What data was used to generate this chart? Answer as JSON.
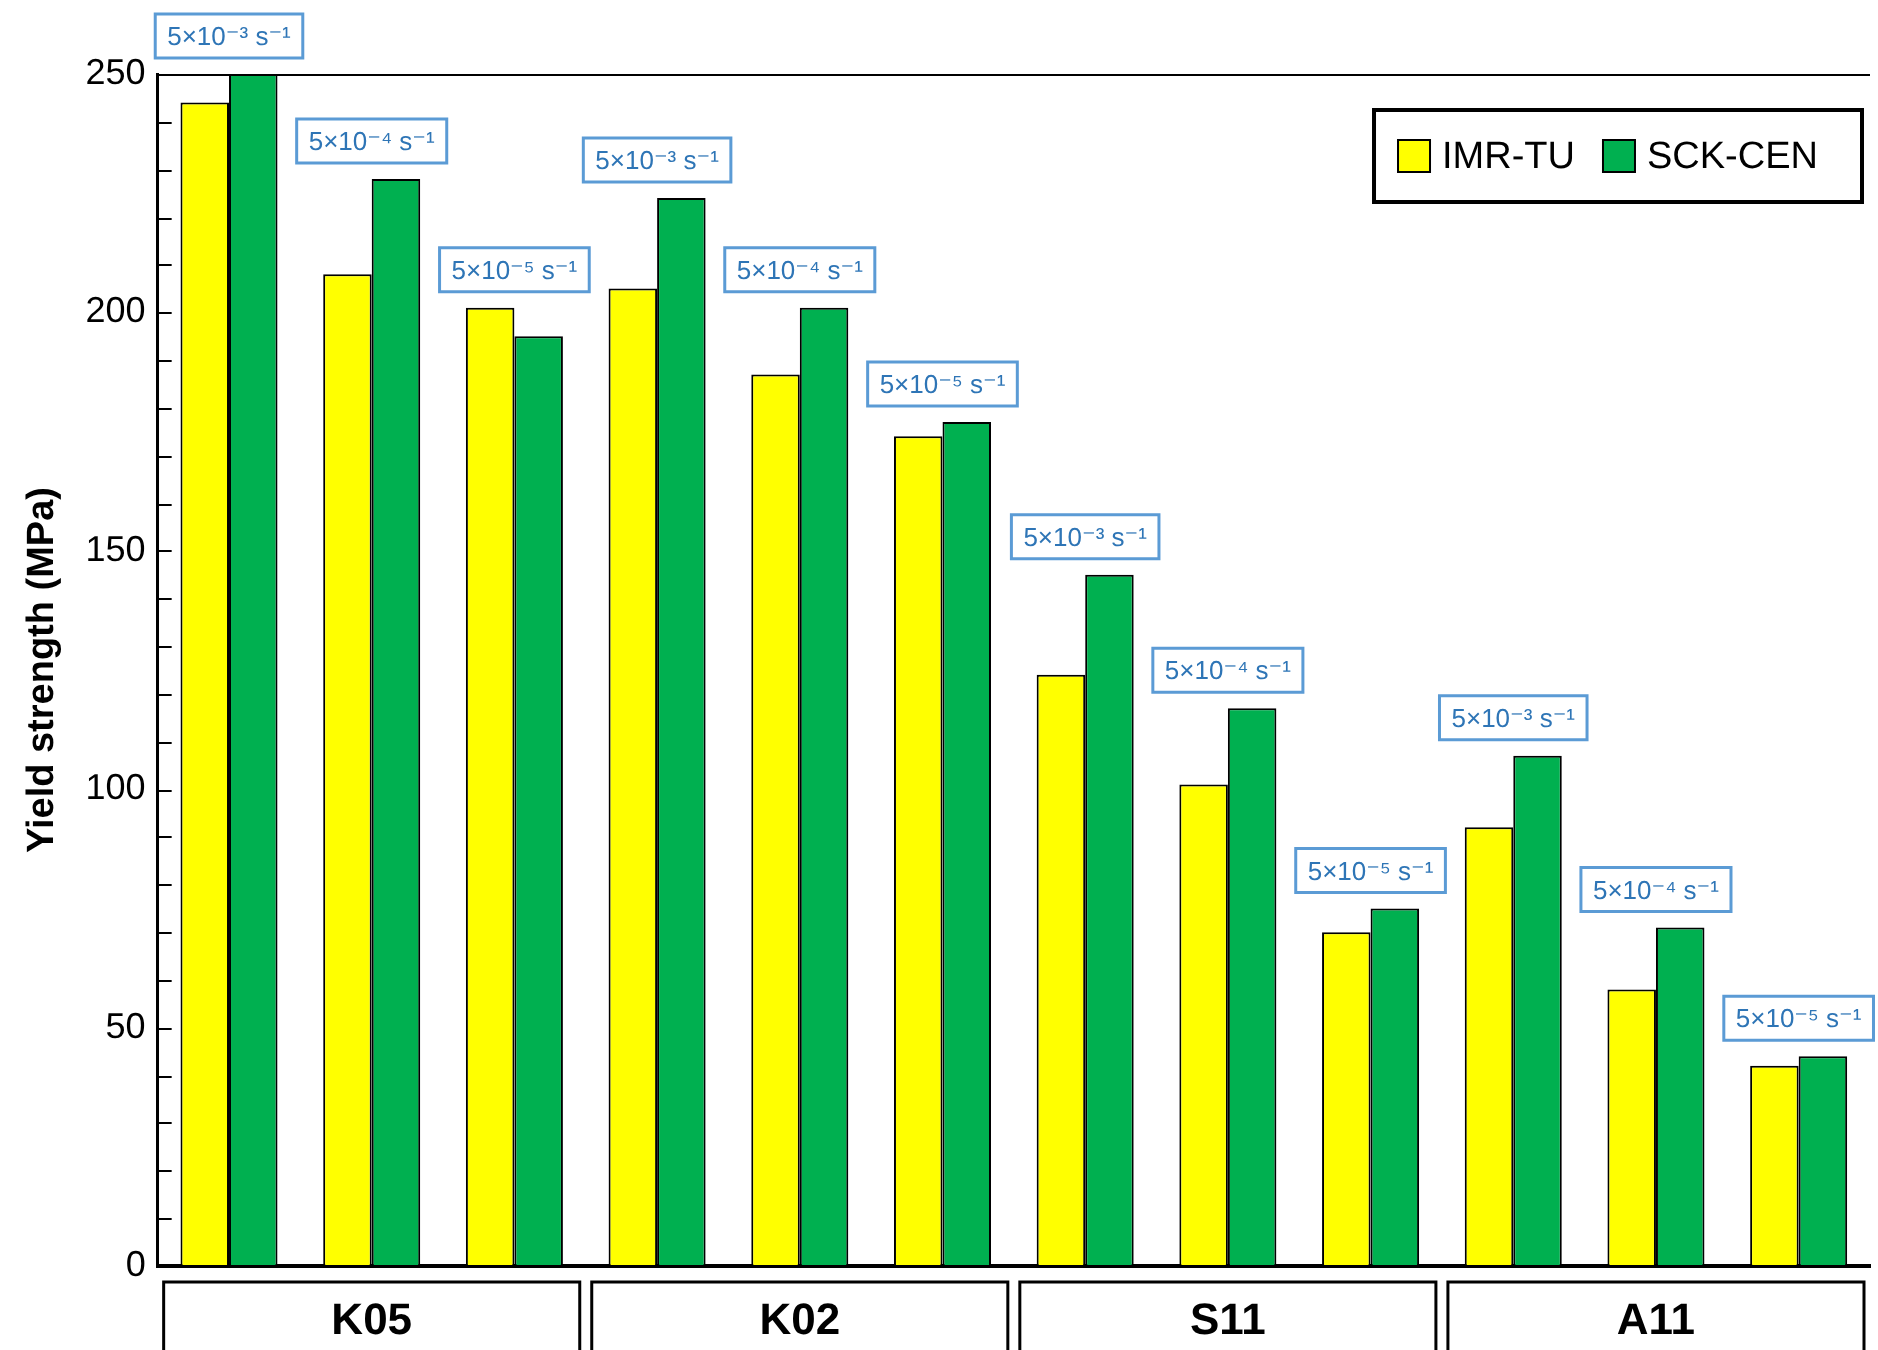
{
  "chart_data": {
    "type": "bar",
    "ylabel": "Yield strength (MPa)",
    "categories": [
      null,
      null,
      null,
      null,
      null,
      null,
      null,
      null,
      null,
      null,
      null,
      null
    ],
    "series": [
      {
        "name": "IMR-TU",
        "color": "#ffff00",
        "values": [
          244,
          208,
          201,
          205,
          187,
          174,
          124,
          101,
          70,
          92,
          58,
          42
        ]
      },
      {
        "name": "SCK-CEN",
        "color": "#00b050",
        "values": [
          250,
          228,
          195,
          224,
          201,
          177,
          145,
          117,
          75,
          107,
          71,
          44
        ]
      }
    ],
    "annotations": [
      "K05",
      "K02",
      "S11",
      "A11",
      {
        "text": "5×10⁻³ s⁻¹",
        "y": 250
      },
      {
        "text": "5×10⁻⁴ s⁻¹",
        "y": 228
      },
      {
        "text": "5×10⁻⁵ s⁻¹",
        "y": 201
      },
      {
        "text": "5×10⁻³ s⁻¹",
        "y": 224
      },
      {
        "text": "5×10⁻⁴ s⁻¹",
        "y": 201
      },
      {
        "text": "5×10⁻⁵ s⁻¹",
        "y": 177
      },
      {
        "text": "5×10⁻³ s⁻¹",
        "y": 145
      },
      {
        "text": "5×10⁻⁴ s⁻¹",
        "y": 117
      },
      {
        "text": "5×10⁻⁵ s⁻¹",
        "y": 75
      },
      {
        "text": "5×10⁻³ s⁻¹",
        "y": 107
      },
      {
        "text": "5×10⁻⁴ s⁻¹",
        "y": 71
      },
      {
        "text": "5×10⁻⁵ s⁻¹",
        "y": 44
      }
    ],
    "ylim": [
      0,
      250
    ],
    "yticks": [
      0,
      {
        "value": 10,
        "label": null
      },
      {
        "value": 20,
        "label": null
      },
      {
        "value": 30,
        "label": null
      },
      {
        "value": 40,
        "label": null
      },
      50,
      {
        "value": 60,
        "label": null
      },
      {
        "value": 70,
        "label": null
      },
      {
        "value": 80,
        "label": null
      },
      {
        "value": 90,
        "label": null
      },
      100,
      {
        "value": 110,
        "label": null
      },
      {
        "value": 120,
        "label": null
      },
      {
        "value": 130,
        "label": null
      },
      {
        "value": 140,
        "label": null
      },
      150,
      {
        "value": 160,
        "label": null
      },
      {
        "value": 170,
        "label": null
      },
      {
        "value": 180,
        "label": null
      },
      {
        "value": 190,
        "label": null
      },
      200,
      {
        "value": 210,
        "label": null
      },
      {
        "value": 220,
        "label": null
      },
      {
        "value": 230,
        "label": null
      },
      {
        "value": 240,
        "label": null
      },
      250
    ],
    "legend": "top right"
  }
}
